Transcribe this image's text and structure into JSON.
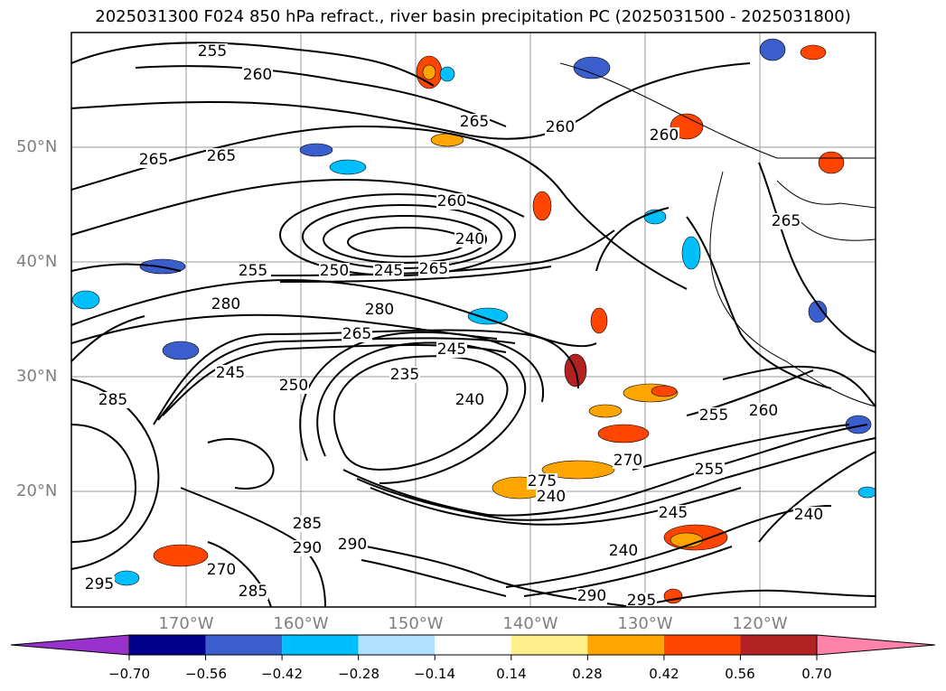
{
  "title": "2025031300 F024 850 hPa refract., river basin precipitation PC (2025031500 - 2025031800)",
  "lat_labels": [
    "50°N",
    "40°N",
    "30°N",
    "20°N"
  ],
  "lon_labels": [
    "170°W",
    "160°W",
    "150°W",
    "140°W",
    "130°W",
    "120°W"
  ],
  "colorbar": {
    "ticks": [
      "−0.70",
      "−0.56",
      "−0.42",
      "−0.28",
      "−0.14",
      "0.14",
      "0.28",
      "0.42",
      "0.56",
      "0.70"
    ],
    "colors": [
      "#9932cc",
      "#00008b",
      "#3a5fcd",
      "#00bfff",
      "#b0e2ff",
      "#ffffff",
      "#fff08c",
      "#ffa500",
      "#ff4500",
      "#b22222",
      "#ff82ab"
    ],
    "extend": "both"
  },
  "contour_labels": [
    "255",
    "260",
    "265",
    "260",
    "265",
    "260",
    "265",
    "260",
    "240",
    "255",
    "250",
    "245",
    "265",
    "280",
    "280",
    "265",
    "245",
    "235",
    "250",
    "245",
    "240",
    "260",
    "265",
    "255",
    "270",
    "255",
    "240",
    "245",
    "240",
    "285",
    "285",
    "290",
    "290",
    "270",
    "295",
    "285",
    "295",
    "290",
    "275",
    "240"
  ]
}
